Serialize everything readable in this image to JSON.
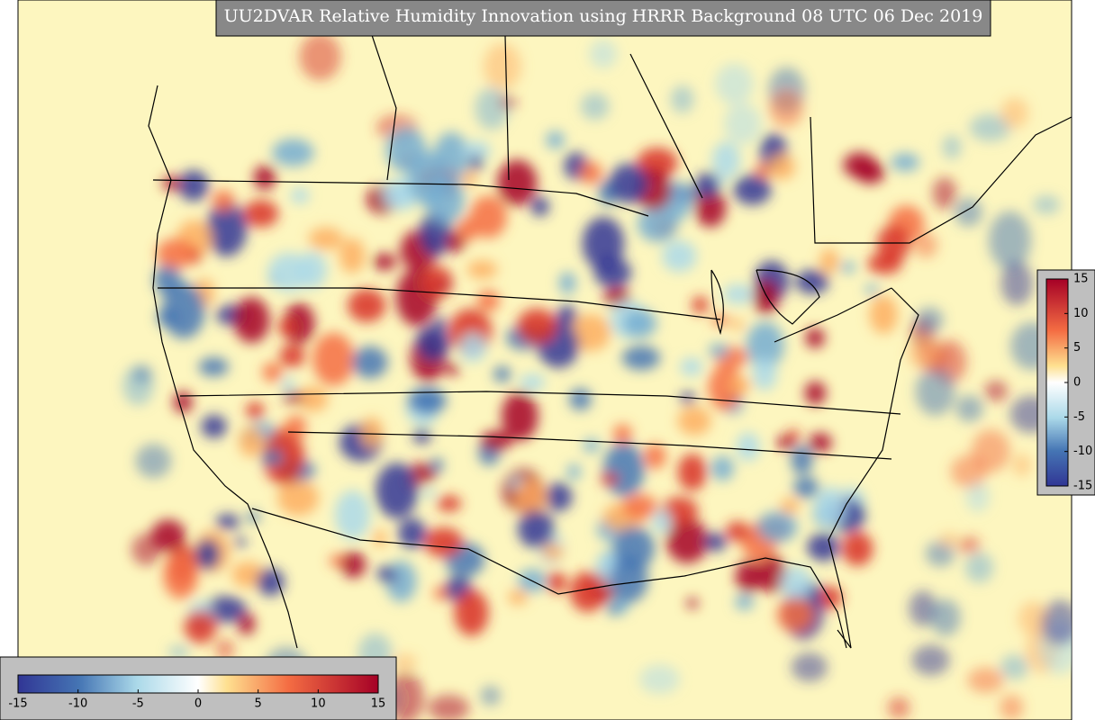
{
  "title": "UU2DVAR Relative Humidity Innovation using HRRR Background 08 UTC 06 Dec 2019",
  "colorbar": {
    "range": [
      -15,
      15
    ],
    "ticks": [
      -15,
      -10,
      -5,
      0,
      5,
      10,
      15
    ]
  }
}
